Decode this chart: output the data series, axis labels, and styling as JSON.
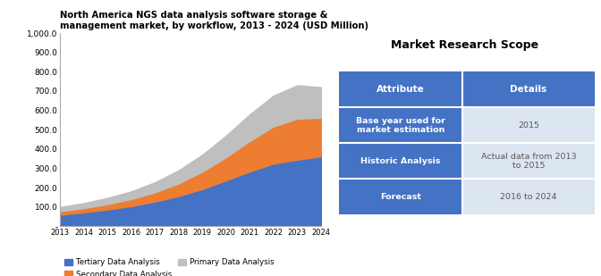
{
  "title": "North America NGS data analysis software storage &\nmanagement market, by workflow, 2013 - 2024 (USD Million)",
  "table_title": "Market Research Scope",
  "years": [
    2013,
    2014,
    2015,
    2016,
    2017,
    2018,
    2019,
    2020,
    2021,
    2022,
    2023,
    2024
  ],
  "tertiary": [
    60,
    72,
    87,
    105,
    128,
    157,
    193,
    238,
    284,
    325,
    345,
    362
  ],
  "secondary": [
    18,
    22,
    28,
    36,
    48,
    65,
    90,
    120,
    158,
    192,
    212,
    200
  ],
  "primary": [
    22,
    26,
    32,
    40,
    52,
    68,
    88,
    112,
    138,
    160,
    173,
    158
  ],
  "ylim": [
    0,
    1000
  ],
  "yticks": [
    0,
    100,
    200,
    300,
    400,
    500,
    600,
    700,
    800,
    900,
    1000
  ],
  "ytick_labels": [
    "-",
    "100.0",
    "200.0",
    "300.0",
    "400.0",
    "500.0",
    "600.0",
    "700.0",
    "800.0",
    "900.0",
    "1,000.0"
  ],
  "color_tertiary": "#4472C4",
  "color_secondary": "#ED7D31",
  "color_primary": "#BFBFBF",
  "legend_labels": [
    "Tertiary Data Analysis",
    "Secondary Data Analysis",
    "Primary Data Analysis"
  ],
  "table_header_color": "#4472C4",
  "table_row_color": "#DCE6F1",
  "table_header_text_color": "#FFFFFF",
  "table_row_text_color": "#595959",
  "table_attributes": [
    "Base year used for\nmarket estimation",
    "Historic Analysis",
    "Forecast"
  ],
  "table_details": [
    "2015",
    "Actual data from 2013\nto 2015",
    "2016 to 2024"
  ],
  "background_color": "#FFFFFF"
}
